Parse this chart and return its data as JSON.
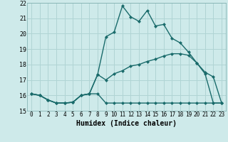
{
  "xlabel": "Humidex (Indice chaleur)",
  "bg_color": "#ceeaea",
  "grid_color": "#b0d4d4",
  "line_color": "#1a6b6b",
  "xlim": [
    -0.5,
    23.5
  ],
  "ylim": [
    15,
    22
  ],
  "xticks": [
    0,
    1,
    2,
    3,
    4,
    5,
    6,
    7,
    8,
    9,
    10,
    11,
    12,
    13,
    14,
    15,
    16,
    17,
    18,
    19,
    20,
    21,
    22,
    23
  ],
  "yticks": [
    15,
    16,
    17,
    18,
    19,
    20,
    21,
    22
  ],
  "series1_x": [
    0,
    1,
    2,
    3,
    4,
    5,
    6,
    7,
    8,
    9,
    10,
    11,
    12,
    13,
    14,
    15,
    16,
    17,
    18,
    19,
    20,
    21,
    22,
    23
  ],
  "series1_y": [
    16.1,
    16.0,
    15.7,
    15.5,
    15.5,
    15.55,
    16.0,
    16.1,
    16.1,
    15.5,
    15.5,
    15.5,
    15.5,
    15.5,
    15.5,
    15.5,
    15.5,
    15.5,
    15.5,
    15.5,
    15.5,
    15.5,
    15.5,
    15.5
  ],
  "series2_x": [
    0,
    1,
    2,
    3,
    4,
    5,
    6,
    7,
    8,
    9,
    10,
    11,
    12,
    13,
    14,
    15,
    16,
    17,
    18,
    19,
    20,
    21,
    22,
    23
  ],
  "series2_y": [
    16.1,
    16.0,
    15.7,
    15.5,
    15.5,
    15.55,
    16.0,
    16.1,
    17.35,
    17.0,
    17.4,
    17.6,
    17.9,
    18.0,
    18.2,
    18.35,
    18.55,
    18.7,
    18.7,
    18.6,
    18.1,
    17.5,
    17.2,
    15.5
  ],
  "series3_x": [
    0,
    1,
    2,
    3,
    4,
    5,
    6,
    7,
    8,
    9,
    10,
    11,
    12,
    13,
    14,
    15,
    16,
    17,
    18,
    19,
    20,
    21,
    22,
    23
  ],
  "series3_y": [
    16.1,
    16.0,
    15.7,
    15.5,
    15.5,
    15.55,
    16.0,
    16.1,
    17.35,
    19.8,
    20.1,
    21.8,
    21.1,
    20.8,
    21.5,
    20.5,
    20.6,
    19.7,
    19.4,
    18.8,
    18.1,
    17.4,
    15.5,
    15.5
  ],
  "marker_size": 2.5,
  "line_width": 1.0
}
